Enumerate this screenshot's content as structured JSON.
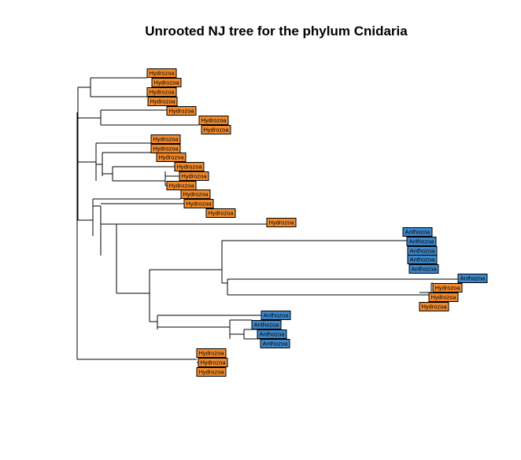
{
  "title": "Unrooted NJ tree for the phylum Cnidaria",
  "colors": {
    "Hydrozoa": "#f08a2c",
    "Anthozoa": "#3d87c9"
  },
  "tips": [
    {
      "label": "Hydrozoa"
    },
    {
      "label": "Hydrozoa"
    },
    {
      "label": "Hydrozoa"
    },
    {
      "label": "Hydrozoa"
    },
    {
      "label": "Hydrozoa"
    },
    {
      "label": "Hydrozoa"
    },
    {
      "label": "Hydrozoa"
    },
    {
      "label": "Hydrozoa"
    },
    {
      "label": "Hydrozoa"
    },
    {
      "label": "Hydrozoa"
    },
    {
      "label": "Hydrozoa"
    },
    {
      "label": "Hydrozoa"
    },
    {
      "label": "Hydrozoa"
    },
    {
      "label": "Hydrozoa"
    },
    {
      "label": "Hydrozoa"
    },
    {
      "label": "Hydrozoa"
    },
    {
      "label": "Hydrozoa"
    },
    {
      "label": "Anthozoa"
    },
    {
      "label": "Anthozoa"
    },
    {
      "label": "Anthozoa"
    },
    {
      "label": "Anthozoa"
    },
    {
      "label": "Anthozoa"
    },
    {
      "label": "Anthozoa"
    },
    {
      "label": "Hydrozoa"
    },
    {
      "label": "Hydrozoa"
    },
    {
      "label": "Hydrozoa"
    },
    {
      "label": "Anthozoa"
    },
    {
      "label": "Anthozoa"
    },
    {
      "label": "Anthozoa"
    },
    {
      "label": "Anthozoa"
    },
    {
      "label": "Hydrozoa"
    },
    {
      "label": "Hydrozoa"
    },
    {
      "label": "Hydrozoa"
    }
  ]
}
